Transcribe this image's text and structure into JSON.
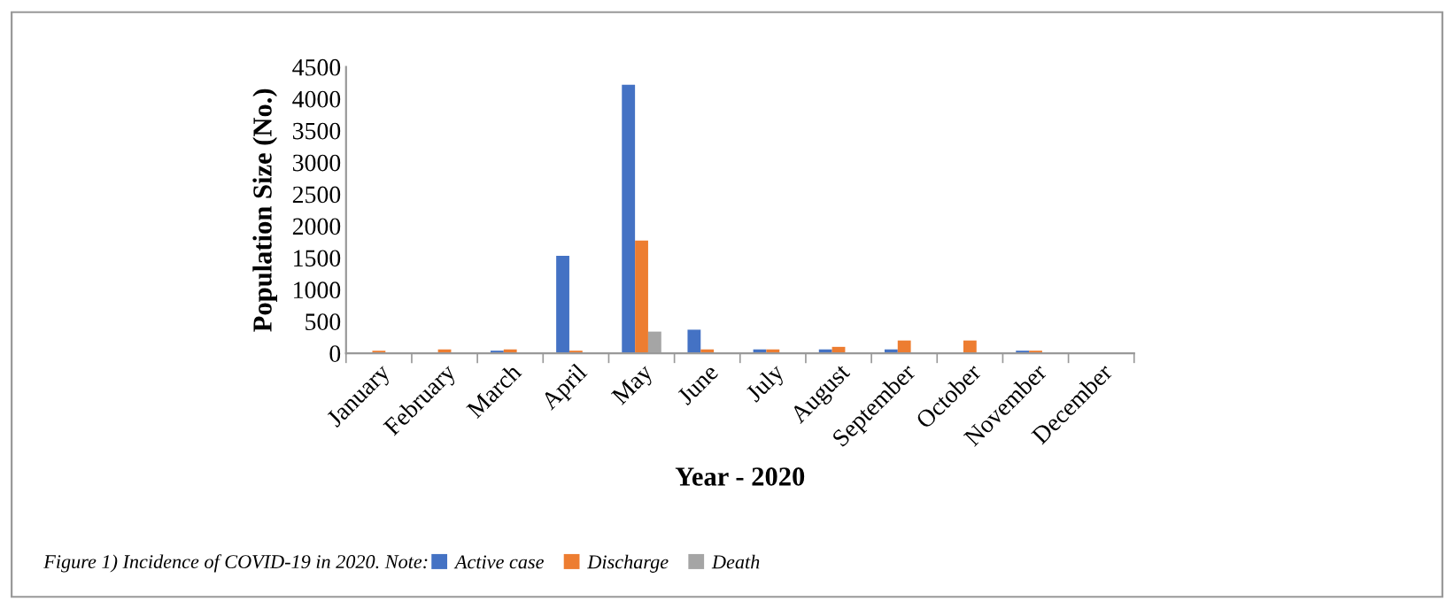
{
  "chart_data": {
    "type": "bar",
    "categories": [
      "January",
      "February",
      "March",
      "April",
      "May",
      "June",
      "July",
      "August",
      "September",
      "October",
      "November",
      "December"
    ],
    "series": [
      {
        "name": "Active case",
        "color": "#4472c4",
        "values": [
          0,
          0,
          40,
          1530,
          4220,
          370,
          60,
          60,
          60,
          0,
          40,
          0
        ]
      },
      {
        "name": "Discharge",
        "color": "#ed7d31",
        "values": [
          40,
          60,
          60,
          40,
          1770,
          60,
          60,
          100,
          200,
          200,
          40,
          0
        ]
      },
      {
        "name": "Death",
        "color": "#a5a5a5",
        "values": [
          0,
          0,
          0,
          0,
          340,
          0,
          0,
          0,
          0,
          0,
          0,
          0
        ]
      }
    ],
    "xlabel": "Year - 2020",
    "ylabel": "Population Size (No.)",
    "ylim": [
      0,
      4500
    ],
    "yticks": [
      0,
      500,
      1000,
      1500,
      2000,
      2500,
      3000,
      3500,
      4000,
      4500
    ],
    "grid": false,
    "legend": "bottom",
    "annotations": [
      "Figure 1) Incidence of COVID-19 in 2020. Note:"
    ]
  }
}
